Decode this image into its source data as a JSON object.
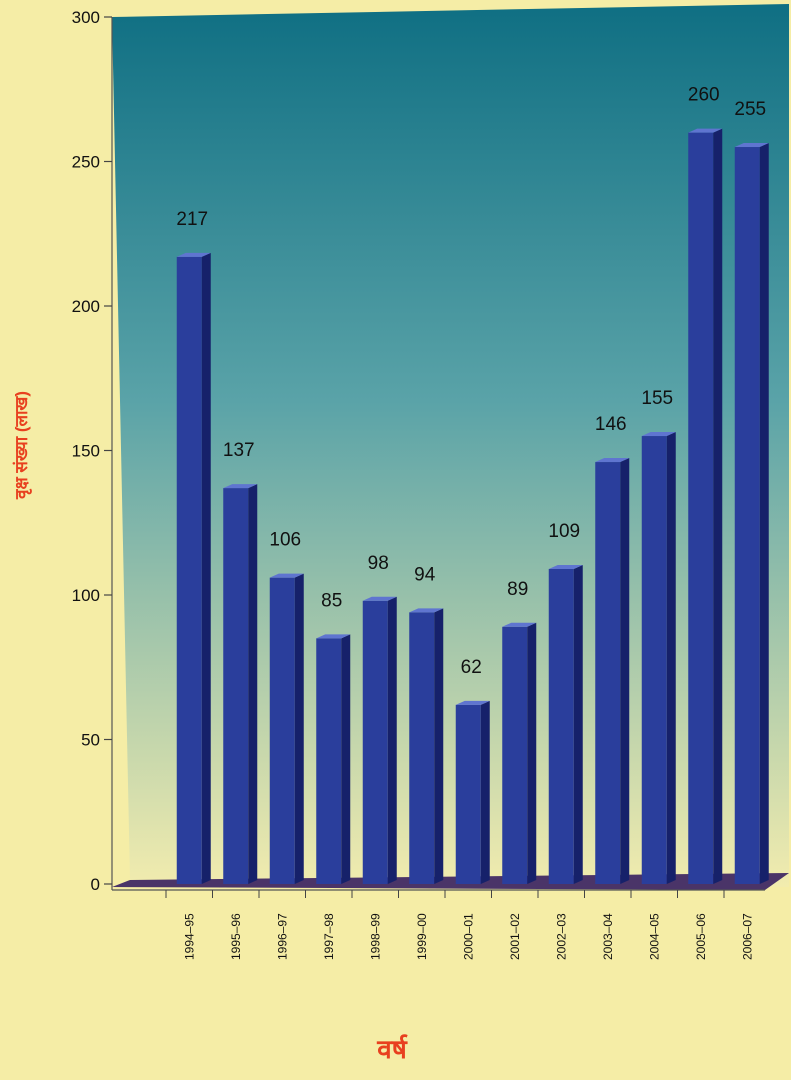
{
  "chart_data": {
    "type": "bar",
    "title": "",
    "xlabel": "वर्ष",
    "ylabel": "वृक्ष संख्या (लाख)",
    "ylim": [
      0,
      300
    ],
    "yticks": [
      0,
      50,
      100,
      150,
      200,
      250,
      300
    ],
    "grid": false,
    "legend": "none",
    "categories": [
      "1994–95",
      "1995–96",
      "1996–97",
      "1997–98",
      "1998–99",
      "1999–00",
      "2000–01",
      "2001–02",
      "2002–03",
      "2003–04",
      "2004–05",
      "2005–06",
      "2006–07"
    ],
    "values": [
      217,
      137,
      106,
      85,
      98,
      94,
      62,
      89,
      109,
      146,
      155,
      260,
      255
    ],
    "data_labels": [
      "217",
      "137",
      "106",
      "85",
      "98",
      "94",
      "62",
      "89",
      "109",
      "146",
      "155",
      "260",
      "255"
    ]
  },
  "colors": {
    "page_background": "#f5eda6",
    "plot_top": "#0f6f83",
    "plot_bottom": "#f2ecae",
    "bar_front": "#2a3e9c",
    "bar_side": "#16216a",
    "bar_top": "#5f75d0",
    "floor": "#4a3468",
    "axis_label_color": "#e8401f",
    "text_color": "#111111"
  }
}
